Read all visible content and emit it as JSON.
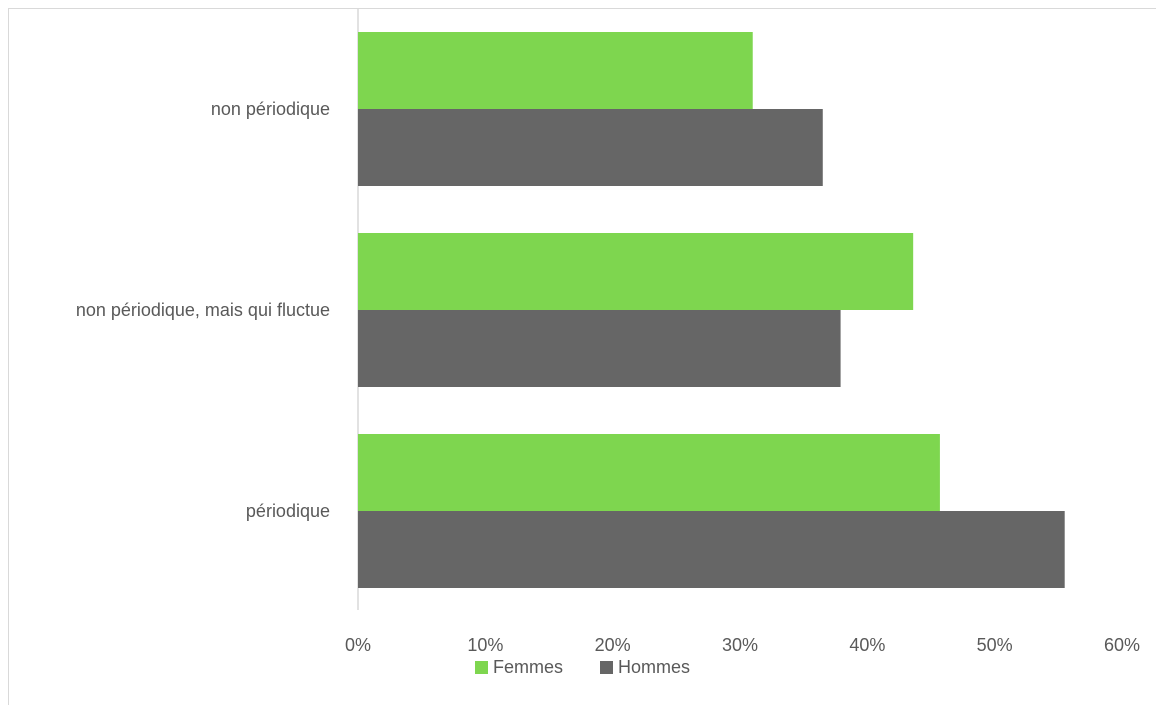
{
  "chart_data": {
    "type": "bar",
    "orientation": "horizontal",
    "categories": [
      "non périodique",
      "non périodique, mais qui fluctue",
      "périodique"
    ],
    "series": [
      {
        "name": "Femmes",
        "color": "#7ed64f",
        "values": [
          31.0,
          43.6,
          45.7
        ]
      },
      {
        "name": "Hommes",
        "color": "#666666",
        "values": [
          36.5,
          37.9,
          55.5
        ]
      }
    ],
    "xlim": [
      0,
      60
    ],
    "xticks": [
      "0%",
      "10%",
      "20%",
      "30%",
      "40%",
      "50%",
      "60%"
    ],
    "grid": false,
    "legend_position": "bottom"
  }
}
